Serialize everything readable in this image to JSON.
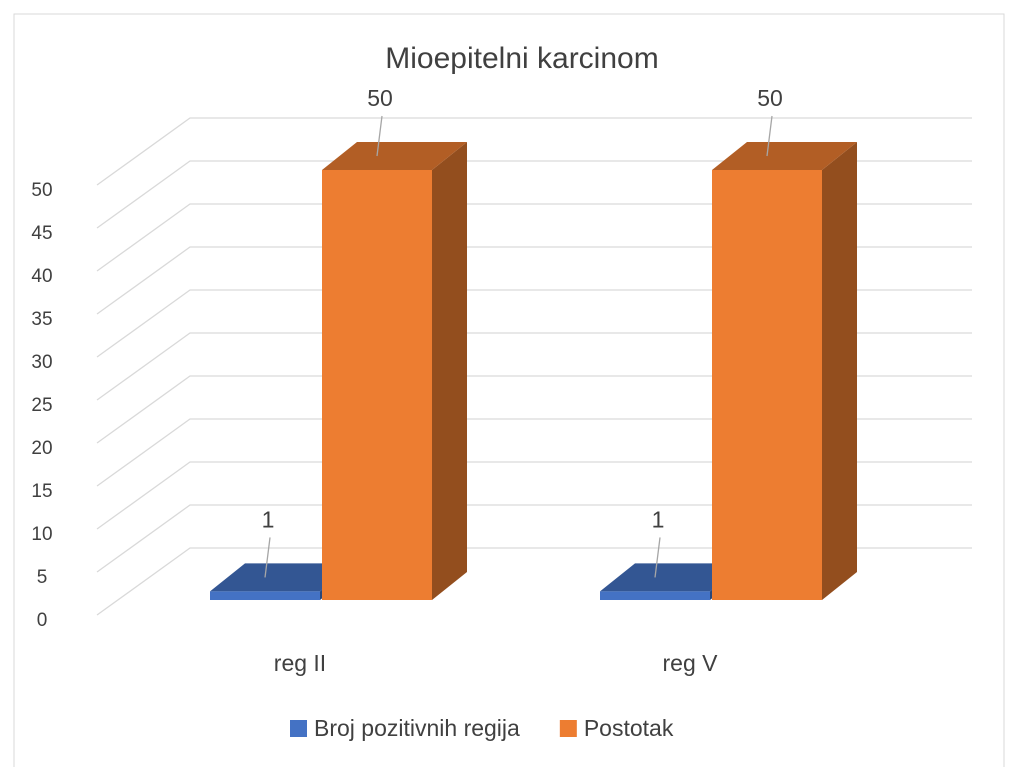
{
  "chart_data": {
    "type": "bar3d",
    "title": "Mioepitelni karcinom",
    "categories": [
      "reg II",
      "reg V"
    ],
    "series": [
      {
        "name": "Broj pozitivnih regija",
        "color": "#4472c4",
        "values": [
          1,
          1
        ]
      },
      {
        "name": "Postotak",
        "color": "#ed7d31",
        "values": [
          50,
          50
        ]
      }
    ],
    "ylim": [
      0,
      50
    ],
    "yticks": [
      0,
      5,
      10,
      15,
      20,
      25,
      30,
      35,
      40,
      45,
      50
    ],
    "grid": true,
    "legend": "bottom"
  }
}
